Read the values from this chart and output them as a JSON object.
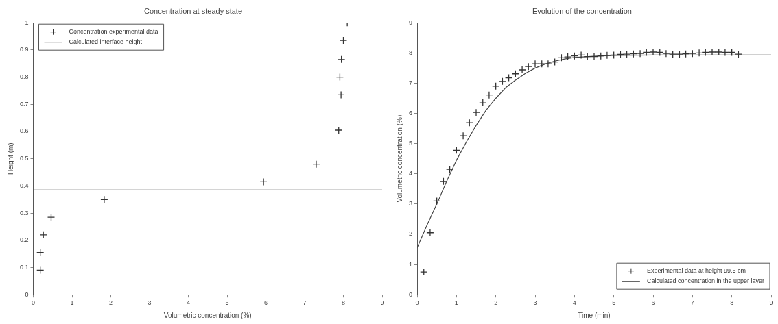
{
  "chart_data": [
    {
      "type": "scatter",
      "title": "Concentration at steady state",
      "xlabel": "Volumetric concentration (%)",
      "ylabel": "Height (m)",
      "xlim": [
        0,
        9
      ],
      "xticks": [
        0,
        1,
        2,
        3,
        4,
        5,
        6,
        7,
        8,
        9
      ],
      "ylim": [
        0,
        1
      ],
      "yticks": [
        0,
        0.1,
        0.2,
        0.3,
        0.4,
        0.5,
        0.6,
        0.7,
        0.8,
        0.9,
        1
      ],
      "grid": false,
      "legend": "top left",
      "series": [
        {
          "name": "Concentration experimental data",
          "marker": "cross",
          "color": "#333333",
          "x": [
            0.18,
            0.18,
            0.26,
            0.46,
            1.83,
            5.94,
            7.3,
            7.88,
            7.94,
            7.91,
            7.95,
            8.0,
            8.1
          ],
          "values": [
            0.09,
            0.155,
            0.22,
            0.285,
            0.35,
            0.415,
            0.48,
            0.605,
            0.735,
            0.8,
            0.865,
            0.935,
            1.0
          ]
        },
        {
          "name": "Calculated interface height",
          "type": "line",
          "marker": "none",
          "color": "#555555",
          "x": [
            0,
            9
          ],
          "values": [
            0.385,
            0.385
          ]
        }
      ]
    },
    {
      "type": "scatter",
      "title": "Evolution of the concentration",
      "xlabel": "Time (min)",
      "ylabel": "Volumetric concentration (%)",
      "xlim": [
        0,
        9
      ],
      "xticks": [
        0,
        1,
        2,
        3,
        4,
        5,
        6,
        7,
        8,
        9
      ],
      "ylim": [
        0,
        9
      ],
      "yticks": [
        0,
        1,
        2,
        3,
        4,
        5,
        6,
        7,
        8,
        9
      ],
      "grid": false,
      "legend": "bottom right",
      "series": [
        {
          "name": "Experimental data at height 99.5 cm",
          "marker": "cross",
          "color": "#333333",
          "x": [
            0.17,
            0.33,
            0.5,
            0.67,
            0.83,
            1.0,
            1.17,
            1.33,
            1.5,
            1.67,
            1.83,
            2.0,
            2.17,
            2.33,
            2.5,
            2.67,
            2.83,
            3.0,
            3.17,
            3.33,
            3.5,
            3.67,
            3.83,
            4.0,
            4.17,
            4.33,
            4.5,
            4.67,
            4.83,
            5.0,
            5.17,
            5.33,
            5.5,
            5.67,
            5.83,
            6.0,
            6.17,
            6.33,
            6.5,
            6.67,
            6.83,
            7.0,
            7.17,
            7.33,
            7.5,
            7.67,
            7.83,
            8.0,
            8.17
          ],
          "values": [
            0.75,
            2.05,
            3.1,
            3.75,
            4.15,
            4.78,
            5.26,
            5.69,
            6.03,
            6.35,
            6.61,
            6.9,
            7.06,
            7.18,
            7.31,
            7.44,
            7.55,
            7.64,
            7.64,
            7.64,
            7.7,
            7.84,
            7.87,
            7.9,
            7.93,
            7.88,
            7.88,
            7.9,
            7.92,
            7.93,
            7.95,
            7.96,
            7.97,
            7.98,
            8.02,
            8.03,
            8.02,
            7.98,
            7.96,
            7.96,
            7.97,
            7.98,
            8.0,
            8.02,
            8.03,
            8.03,
            8.02,
            8.02,
            7.96
          ]
        },
        {
          "name": "Calculated concentration in the upper layer",
          "type": "line",
          "marker": "none",
          "color": "#444444",
          "x": [
            0,
            0.25,
            0.5,
            0.75,
            1.0,
            1.25,
            1.5,
            1.75,
            2.0,
            2.25,
            2.5,
            2.75,
            3.0,
            3.25,
            3.5,
            3.75,
            4.0,
            4.5,
            5.0,
            6.0,
            7.0,
            8.0,
            9.0
          ],
          "values": [
            1.55,
            2.3,
            3.0,
            3.75,
            4.45,
            5.05,
            5.6,
            6.1,
            6.5,
            6.85,
            7.1,
            7.32,
            7.5,
            7.63,
            7.73,
            7.8,
            7.85,
            7.89,
            7.92,
            7.93,
            7.93,
            7.93,
            7.93
          ]
        }
      ]
    }
  ]
}
